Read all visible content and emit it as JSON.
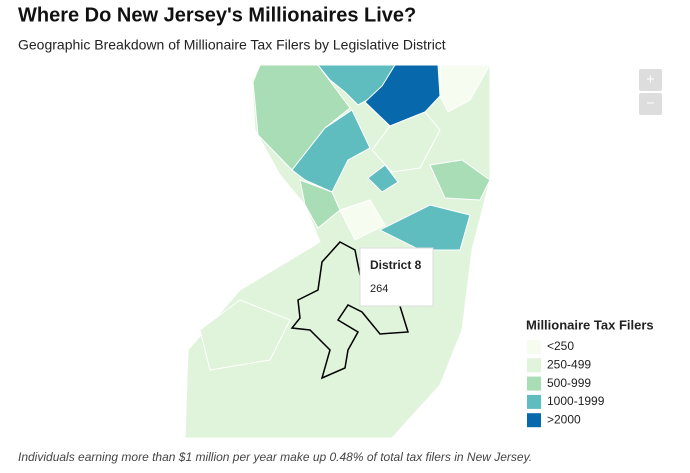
{
  "header": {
    "title": "Where Do New Jersey's Millionaires Live?",
    "subtitle": "Geographic Breakdown of Millionaire Tax Filers by Legislative District"
  },
  "zoom": {
    "in": "+",
    "out": "−"
  },
  "tooltip": {
    "label": "District 8",
    "value": 264
  },
  "legend": {
    "title": "Millionaire Tax Filers",
    "items": [
      {
        "label": "<250",
        "color": "#f7fcf0"
      },
      {
        "label": "250-499",
        "color": "#e0f3db"
      },
      {
        "label": "500-999",
        "color": "#a8ddb5"
      },
      {
        "label": "1000-1999",
        "color": "#5fbcbf"
      },
      {
        "label": ">2000",
        "color": "#0868ac"
      }
    ]
  },
  "footnote": "Individuals earning more than $1 million per year make up 0.48% of total tax filers in New Jersey."
}
